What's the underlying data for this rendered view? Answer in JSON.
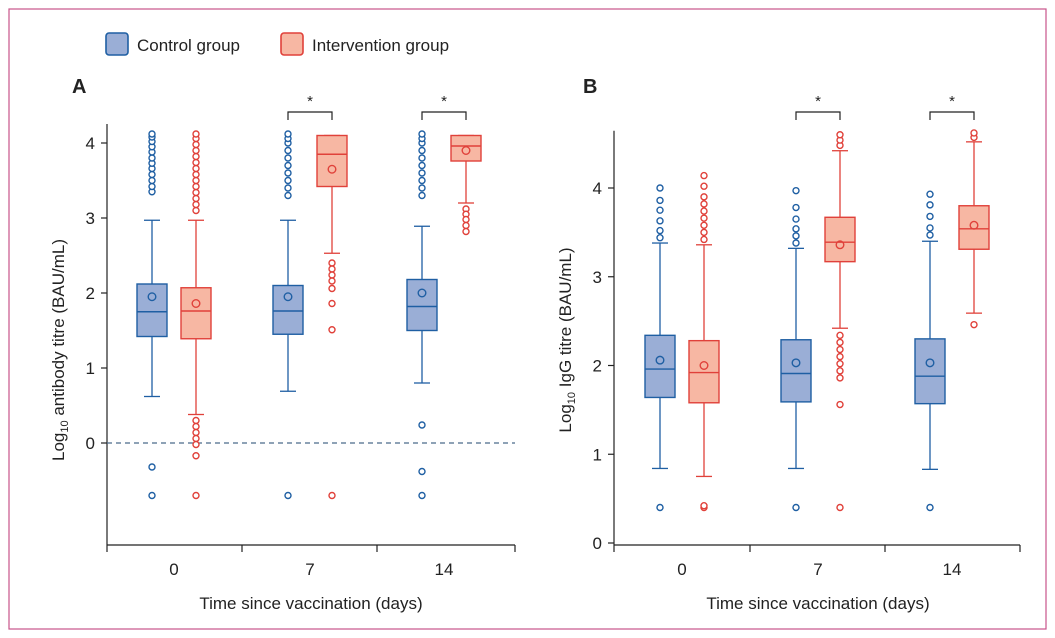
{
  "colors": {
    "frame": "#c9538a",
    "control_stroke": "#1f5fa3",
    "control_fill": "#9aaed6",
    "intervention_stroke": "#e0413a",
    "intervention_fill": "#f7b7a3",
    "axis": "#222222",
    "reference_line": "#4a6a8a"
  },
  "legend": {
    "control_label": "Control group",
    "intervention_label": "Intervention group"
  },
  "chart_data": [
    {
      "panel": "A",
      "type": "box",
      "xlabel": "Time since vaccination (days)",
      "ylabel_prefix": "Log",
      "ylabel_subscript": "10",
      "ylabel_suffix": " antibody titre (BAU/mL)",
      "ylim": [
        -1.35,
        4.2
      ],
      "yticks": [
        0,
        1,
        2,
        3,
        4
      ],
      "reference_line_y": 0,
      "categories": [
        "0",
        "7",
        "14"
      ],
      "significance": [
        {
          "category": "7",
          "label": "*"
        },
        {
          "category": "14",
          "label": "*"
        }
      ],
      "series": [
        {
          "name": "Control group",
          "boxes": [
            {
              "q1": 1.42,
              "median": 1.75,
              "q3": 2.12,
              "mean": 1.95,
              "whisker_low": 0.62,
              "whisker_high": 2.97,
              "outliers": [
                -0.32,
                -0.7,
                3.35,
                3.42,
                3.5,
                3.58,
                3.66,
                3.73,
                3.8,
                3.88,
                3.95,
                4.02,
                4.08,
                4.12
              ]
            },
            {
              "q1": 1.45,
              "median": 1.76,
              "q3": 2.1,
              "mean": 1.95,
              "whisker_low": 0.69,
              "whisker_high": 2.97,
              "outliers": [
                -0.7,
                3.3,
                3.4,
                3.5,
                3.6,
                3.7,
                3.8,
                3.9,
                4.0,
                4.06,
                4.12
              ]
            },
            {
              "q1": 1.5,
              "median": 1.82,
              "q3": 2.18,
              "mean": 2.0,
              "whisker_low": 0.8,
              "whisker_high": 2.89,
              "outliers": [
                0.24,
                -0.38,
                -0.7,
                3.3,
                3.4,
                3.5,
                3.6,
                3.7,
                3.8,
                3.9,
                4.0,
                4.06,
                4.12
              ]
            }
          ]
        },
        {
          "name": "Intervention group",
          "boxes": [
            {
              "q1": 1.39,
              "median": 1.76,
              "q3": 2.07,
              "mean": 1.86,
              "whisker_low": 0.38,
              "whisker_high": 2.97,
              "outliers": [
                0.3,
                0.22,
                0.14,
                0.06,
                -0.02,
                -0.17,
                -0.7,
                3.1,
                3.18,
                3.26,
                3.34,
                3.42,
                3.5,
                3.58,
                3.66,
                3.74,
                3.82,
                3.9,
                3.98,
                4.06,
                4.12
              ]
            },
            {
              "q1": 3.42,
              "median": 3.85,
              "q3": 4.1,
              "mean": 3.65,
              "whisker_low": 2.53,
              "whisker_high": 4.1,
              "outliers": [
                2.4,
                2.32,
                2.24,
                2.16,
                2.06,
                1.86,
                1.51,
                -0.7
              ]
            },
            {
              "q1": 3.76,
              "median": 3.96,
              "q3": 4.1,
              "mean": 3.9,
              "whisker_low": 3.2,
              "whisker_high": 4.1,
              "outliers": [
                3.12,
                3.05,
                2.98,
                2.9,
                2.82
              ]
            }
          ]
        }
      ]
    },
    {
      "panel": "B",
      "type": "box",
      "xlabel": "Time since vaccination (days)",
      "ylabel_prefix": "Log",
      "ylabel_subscript": "10",
      "ylabel_suffix": " IgG titre (BAU/mL)",
      "ylim": [
        0,
        4.6
      ],
      "yticks": [
        0,
        1,
        2,
        3,
        4
      ],
      "categories": [
        "0",
        "7",
        "14"
      ],
      "significance": [
        {
          "category": "7",
          "label": "*"
        },
        {
          "category": "14",
          "label": "*"
        }
      ],
      "series": [
        {
          "name": "Control group",
          "boxes": [
            {
              "q1": 1.64,
              "median": 1.96,
              "q3": 2.34,
              "mean": 2.06,
              "whisker_low": 0.84,
              "whisker_high": 3.38,
              "outliers": [
                0.4,
                3.44,
                3.52,
                3.63,
                3.75,
                3.86,
                4.0
              ]
            },
            {
              "q1": 1.59,
              "median": 1.91,
              "q3": 2.29,
              "mean": 2.03,
              "whisker_low": 0.84,
              "whisker_high": 3.32,
              "outliers": [
                0.4,
                3.38,
                3.46,
                3.54,
                3.65,
                3.78,
                3.97
              ]
            },
            {
              "q1": 1.57,
              "median": 1.88,
              "q3": 2.3,
              "mean": 2.03,
              "whisker_low": 0.83,
              "whisker_high": 3.4,
              "outliers": [
                0.4,
                3.47,
                3.55,
                3.68,
                3.81,
                3.93
              ]
            }
          ]
        },
        {
          "name": "Intervention group",
          "boxes": [
            {
              "q1": 1.58,
              "median": 1.92,
              "q3": 2.28,
              "mean": 2.0,
              "whisker_low": 0.75,
              "whisker_high": 3.36,
              "outliers": [
                0.4,
                0.42,
                3.42,
                3.5,
                3.58,
                3.66,
                3.74,
                3.82,
                3.9,
                4.02,
                4.14
              ]
            },
            {
              "q1": 3.17,
              "median": 3.39,
              "q3": 3.67,
              "mean": 3.36,
              "whisker_low": 2.42,
              "whisker_high": 4.42,
              "outliers": [
                2.34,
                2.26,
                2.18,
                2.1,
                2.02,
                1.94,
                1.86,
                1.56,
                0.4,
                4.48,
                4.54,
                4.6
              ]
            },
            {
              "q1": 3.31,
              "median": 3.54,
              "q3": 3.8,
              "mean": 3.58,
              "whisker_low": 2.59,
              "whisker_high": 4.52,
              "outliers": [
                2.46,
                4.57,
                4.62
              ]
            }
          ]
        }
      ]
    }
  ]
}
